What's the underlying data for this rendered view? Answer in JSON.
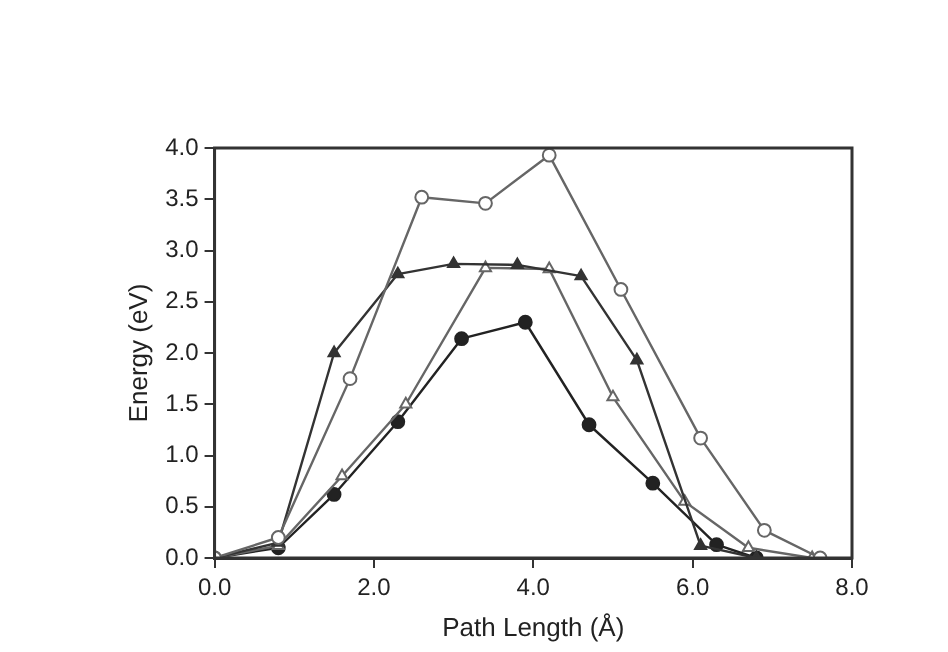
{
  "chart_data": {
    "type": "line",
    "xlabel": "Path Length (Å)",
    "ylabel": "Energy (eV)",
    "xlim": [
      0,
      8
    ],
    "xticks": [
      {
        "value": 0,
        "label": "0.0"
      },
      {
        "value": 2,
        "label": "2.0"
      },
      {
        "value": 4,
        "label": "4.0"
      },
      {
        "value": 6,
        "label": "6.0"
      },
      {
        "value": 8,
        "label": "8.0"
      }
    ],
    "ylim": [
      0,
      4
    ],
    "yticks": [
      {
        "value": 0,
        "label": "0.0"
      },
      {
        "value": 0.5,
        "label": "0.5"
      },
      {
        "value": 1,
        "label": "1.0"
      },
      {
        "value": 1.5,
        "label": "1.5"
      },
      {
        "value": 2,
        "label": "2.0"
      },
      {
        "value": 2.5,
        "label": "2.5"
      },
      {
        "value": 3,
        "label": "3.0"
      },
      {
        "value": 3.5,
        "label": "3.5"
      },
      {
        "value": 4,
        "label": "4.0"
      }
    ],
    "grid": false,
    "legend": false,
    "line_style": "solid",
    "series": [
      {
        "color": "#666666",
        "marker": "circle",
        "x": [
          0,
          0.8,
          1.7,
          2.6,
          3.4,
          4.2,
          5.1,
          6.1,
          6.9,
          7.6
        ],
        "values": [
          0,
          0.2,
          1.75,
          3.52,
          3.46,
          3.93,
          2.62,
          1.17,
          0.27,
          0
        ]
      },
      {
        "color": "#333333",
        "marker": "triangle",
        "x": [
          0,
          0.8,
          1.5,
          2.3,
          3.0,
          3.8,
          4.6,
          5.3,
          6.1,
          6.8
        ],
        "values": [
          0,
          0.15,
          2.0,
          2.77,
          2.87,
          2.86,
          2.75,
          1.93,
          0.12,
          0
        ]
      },
      {
        "color": "#666666",
        "marker": "triangle",
        "x": [
          0,
          0.8,
          1.6,
          2.4,
          3.4,
          4.2,
          5.0,
          5.9,
          6.7,
          7.5
        ],
        "values": [
          0,
          0.12,
          0.8,
          1.5,
          2.83,
          2.82,
          1.57,
          0.55,
          0.1,
          0
        ]
      },
      {
        "color": "#222222",
        "marker": "circle",
        "x": [
          0,
          0.8,
          1.5,
          2.3,
          3.1,
          3.9,
          4.7,
          5.5,
          6.3,
          6.8
        ],
        "values": [
          0,
          0.1,
          0.62,
          1.33,
          2.14,
          2.3,
          1.3,
          0.73,
          0.13,
          0
        ]
      }
    ]
  }
}
